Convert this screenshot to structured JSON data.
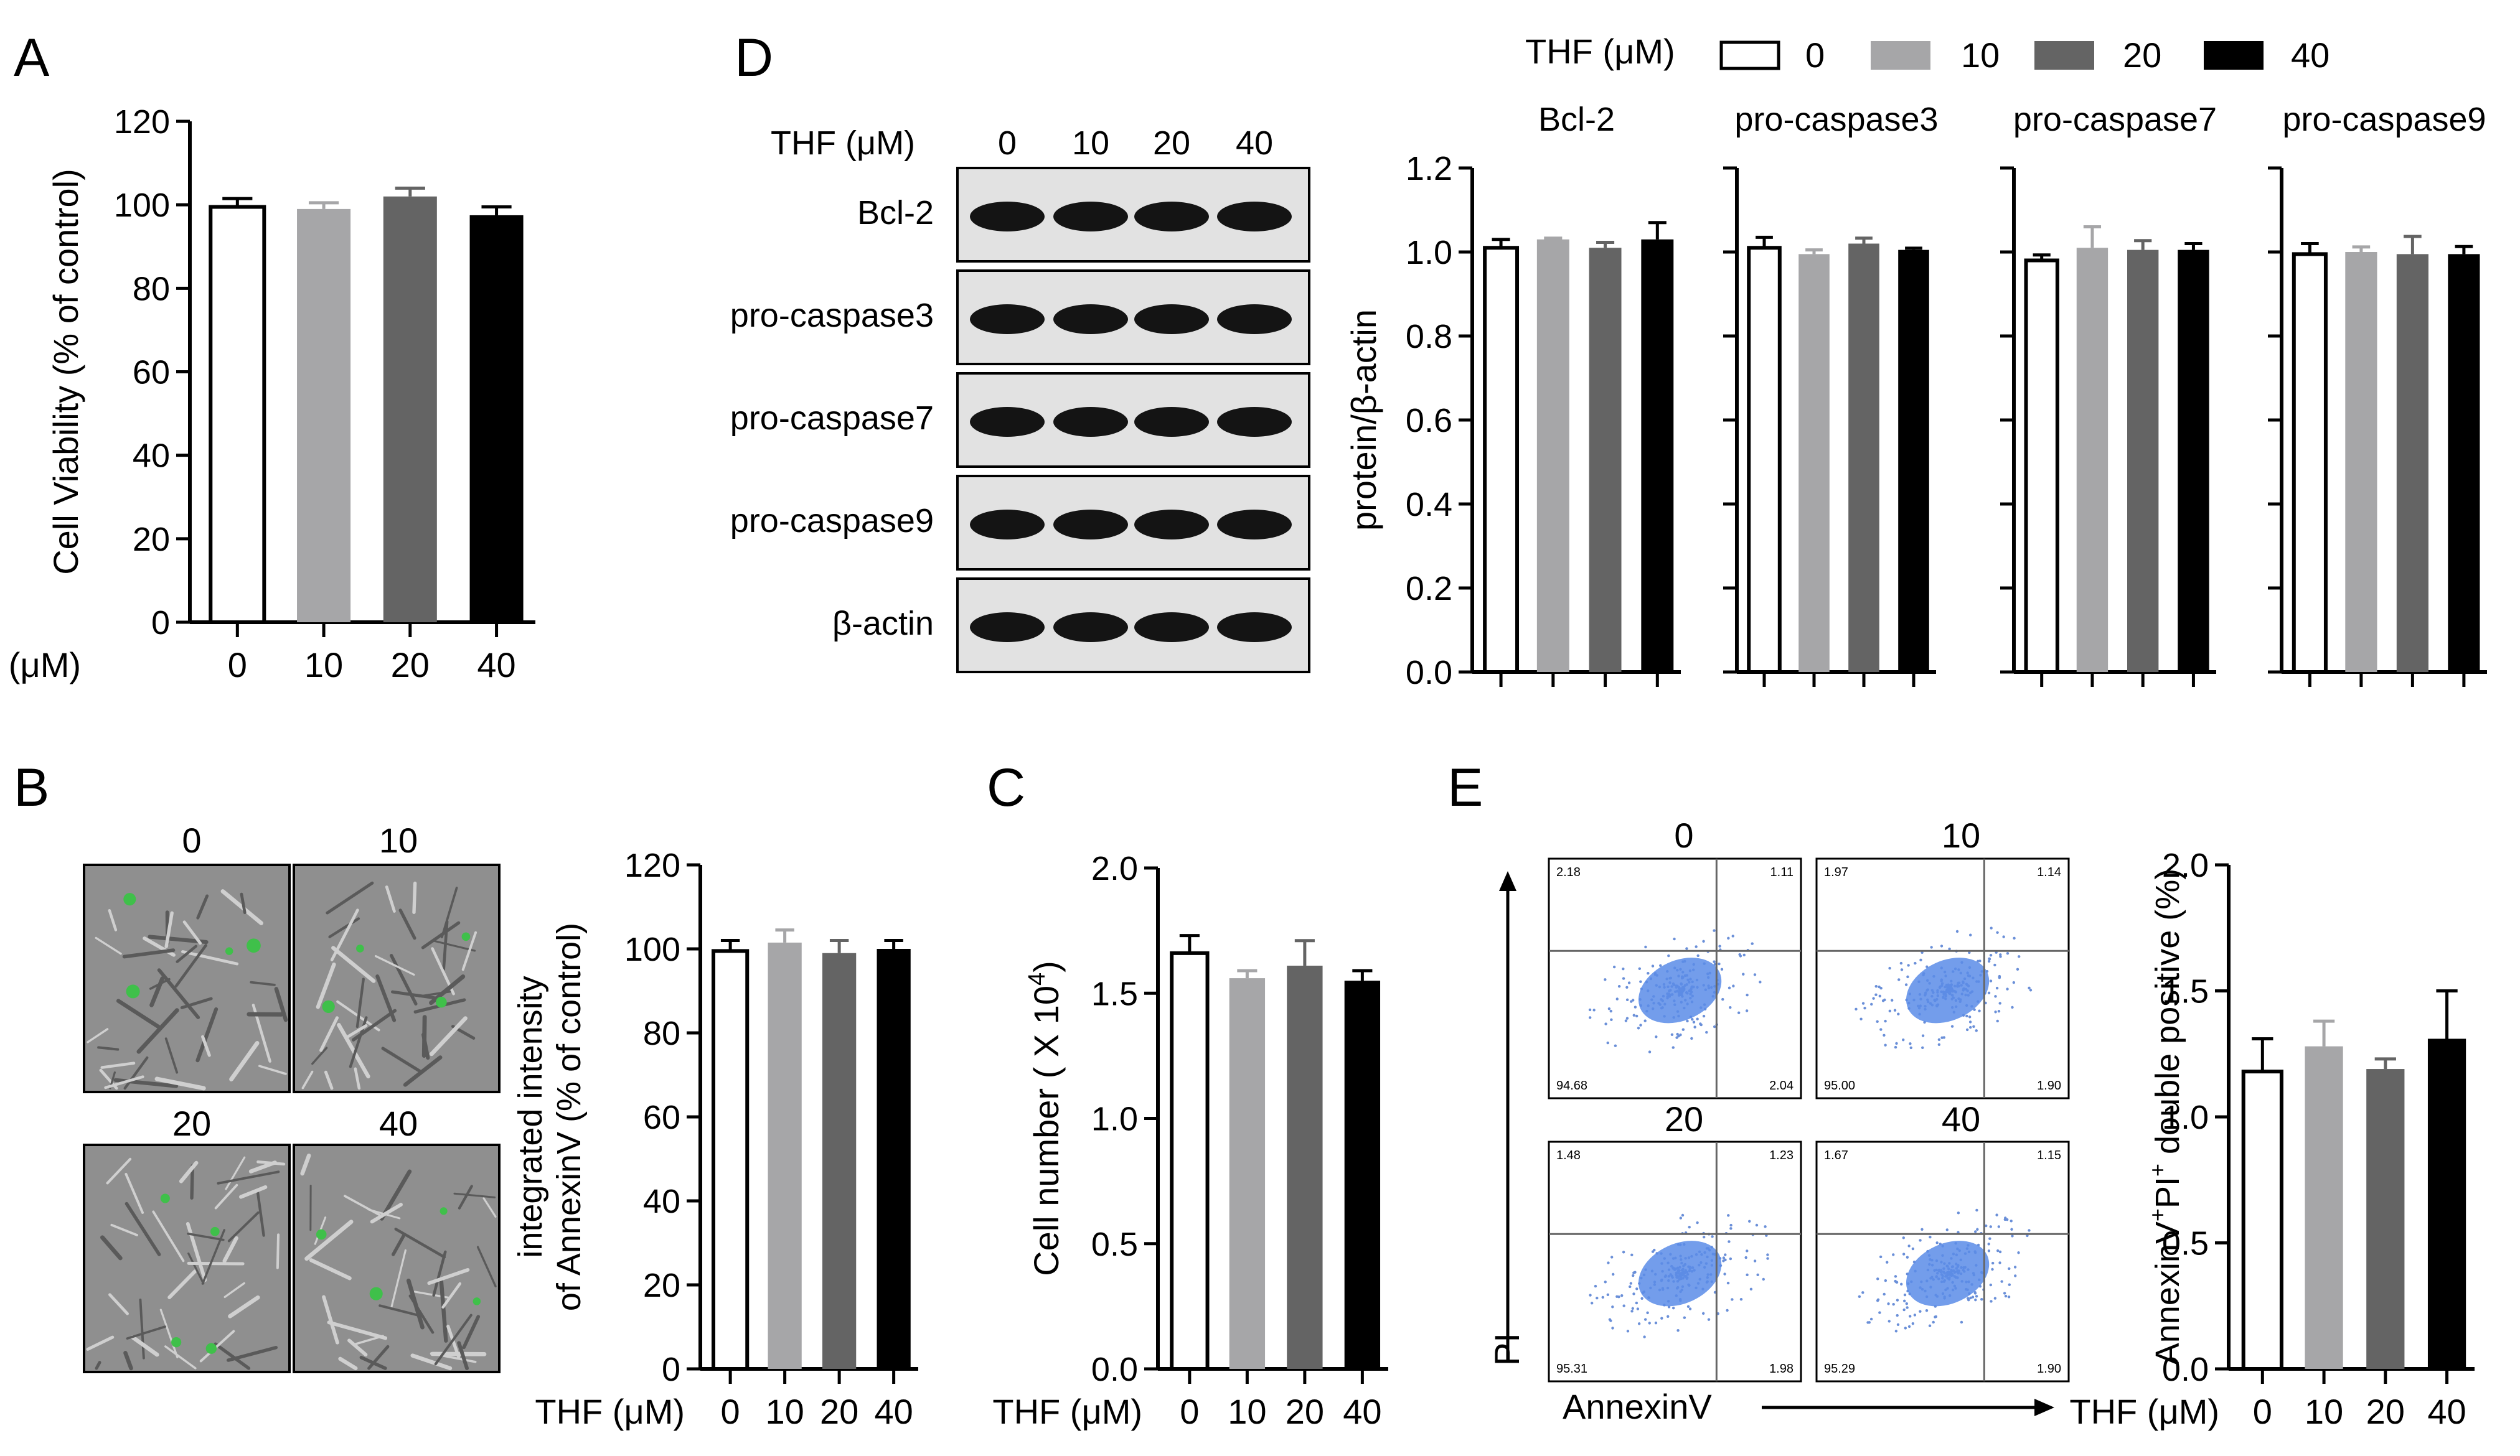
{
  "legend": {
    "label": "THF (μM)",
    "items": [
      {
        "name": "0",
        "color": "#ffffff"
      },
      {
        "name": "10",
        "color": "#a6a6a8"
      },
      {
        "name": "20",
        "color": "#646464"
      },
      {
        "name": "40",
        "color": "#000000"
      }
    ]
  },
  "panel_letters": [
    "A",
    "B",
    "C",
    "D",
    "E"
  ],
  "blot": {
    "header": "THF (μM)",
    "lanes": [
      "0",
      "10",
      "20",
      "40"
    ],
    "rows": [
      "Bcl-2",
      "pro-caspase3",
      "pro-caspase7",
      "pro-caspase9",
      "β-actin"
    ]
  },
  "micro": {
    "labels": [
      "0",
      "10",
      "20",
      "40"
    ]
  },
  "flow": {
    "labels": [
      "0",
      "10",
      "20",
      "40"
    ],
    "quadrants": [
      [
        "2.18",
        "1.11",
        "94.68",
        "2.04"
      ],
      [
        "1.97",
        "1.14",
        "95.00",
        "1.90"
      ],
      [
        "1.48",
        "1.23",
        "95.31",
        "1.98"
      ],
      [
        "1.67",
        "1.15",
        "95.29",
        "1.90"
      ]
    ],
    "xaxis": "AnnexinV",
    "yaxis": "PI"
  },
  "chart_data": [
    {
      "id": "A",
      "type": "bar",
      "categories": [
        "0",
        "10",
        "20",
        "40"
      ],
      "values": [
        99.5,
        99.0,
        102.0,
        97.5
      ],
      "errors": [
        2,
        1.5,
        2,
        2
      ],
      "ylabel": "Cell Viability (% of control)",
      "xlabel": "THF (μM)",
      "ylim": [
        0,
        120
      ],
      "ticks": [
        "0",
        "20",
        "40",
        "60",
        "80",
        "100",
        "120"
      ]
    },
    {
      "id": "D-Bcl-2",
      "type": "bar",
      "title": "Bcl-2",
      "categories": [
        "0",
        "10",
        "20",
        "40"
      ],
      "values": [
        1.01,
        1.03,
        1.01,
        1.03
      ],
      "errors": [
        0.02,
        0.003,
        0.013,
        0.04
      ],
      "ylabel": "protein/β-actin",
      "ylim": [
        0,
        1.2
      ],
      "ticks": [
        "0.0",
        "0.2",
        "0.4",
        "0.6",
        "0.8",
        "1.0",
        "1.2"
      ]
    },
    {
      "id": "D-pro-caspase3",
      "type": "bar",
      "title": "pro-caspase3",
      "categories": [
        "0",
        "10",
        "20",
        "40"
      ],
      "values": [
        1.01,
        0.995,
        1.02,
        1.005
      ],
      "errors": [
        0.025,
        0.01,
        0.013,
        0.004
      ],
      "ylim": [
        0,
        1.2
      ]
    },
    {
      "id": "D-pro-caspase7",
      "type": "bar",
      "title": "pro-caspase7",
      "categories": [
        "0",
        "10",
        "20",
        "40"
      ],
      "values": [
        0.98,
        1.01,
        1.005,
        1.005
      ],
      "errors": [
        0.013,
        0.05,
        0.022,
        0.015
      ],
      "ylim": [
        0,
        1.2
      ]
    },
    {
      "id": "D-pro-caspase9",
      "type": "bar",
      "title": "pro-caspase9",
      "categories": [
        "0",
        "10",
        "20",
        "40"
      ],
      "values": [
        0.995,
        1.0,
        0.995,
        0.995
      ],
      "errors": [
        0.025,
        0.012,
        0.042,
        0.018
      ],
      "ylim": [
        0,
        1.2
      ]
    },
    {
      "id": "B",
      "type": "bar",
      "categories": [
        "0",
        "10",
        "20",
        "40"
      ],
      "values": [
        99.5,
        101.5,
        99.0,
        100.0
      ],
      "errors": [
        2.5,
        3,
        3,
        2
      ],
      "ylabel": "integrated intensity\nof AnnexinV (% of control)",
      "xlabel": "THF (μM)",
      "ylim": [
        0,
        120
      ],
      "ticks": [
        "0",
        "20",
        "40",
        "60",
        "80",
        "100",
        "120"
      ]
    },
    {
      "id": "C",
      "type": "bar",
      "categories": [
        "0",
        "10",
        "20",
        "40"
      ],
      "values": [
        1.66,
        1.56,
        1.61,
        1.55
      ],
      "errors": [
        0.07,
        0.03,
        0.1,
        0.04
      ],
      "ylabel": "Cell number ( X 10^4)",
      "xlabel": "THF (μM)",
      "ylim": [
        0,
        2.0
      ],
      "ticks": [
        "0.0",
        "0.5",
        "1.0",
        "1.5",
        "2.0"
      ]
    },
    {
      "id": "E",
      "type": "bar",
      "categories": [
        "0",
        "10",
        "20",
        "40"
      ],
      "values": [
        1.18,
        1.28,
        1.19,
        1.31
      ],
      "errors": [
        0.13,
        0.1,
        0.04,
        0.19
      ],
      "ylabel": "AnnexinV+PI+ double positive (%)",
      "xlabel": "THF (μM)",
      "ylim": [
        0,
        2.0
      ],
      "ticks": [
        "0.0",
        "0.5",
        "1.0",
        "1.5",
        "2.0"
      ]
    }
  ]
}
